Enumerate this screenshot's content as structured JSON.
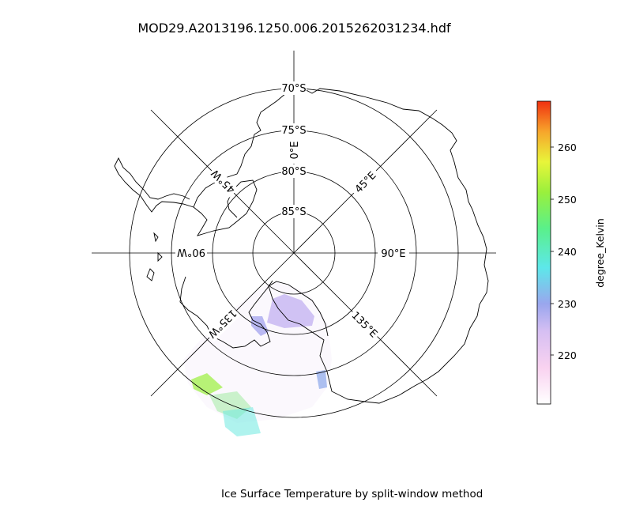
{
  "figure": {
    "title": "MOD29.A2013196.1250.006.2015262031234.hdf",
    "caption": "Ice Surface Temperature by split-window method"
  },
  "map": {
    "projection": "south polar stereographic",
    "latitude_labels": [
      "70°S",
      "75°S",
      "80°S",
      "85°S"
    ],
    "longitude_labels": [
      {
        "text": "0°E",
        "lon": 0
      },
      {
        "text": "45°E",
        "lon": 45
      },
      {
        "text": "90°E",
        "lon": 90
      },
      {
        "text": "135°E",
        "lon": 135
      },
      {
        "text": "135°W",
        "lon": -135
      },
      {
        "text": "90°W",
        "lon": -90
      },
      {
        "text": "45°W",
        "lon": -45
      }
    ]
  },
  "colorbar": {
    "label": "degree_Kelvin",
    "ticks": [
      "220",
      "230",
      "240",
      "250",
      "260"
    ],
    "range": [
      210,
      269
    ],
    "colormap": [
      "#ffffff",
      "#f9d2f0",
      "#c8b6f2",
      "#8aa6ea",
      "#5de7ea",
      "#4ff27a",
      "#9af03c",
      "#e8f53a",
      "#f7a52b",
      "#f04015"
    ]
  }
}
